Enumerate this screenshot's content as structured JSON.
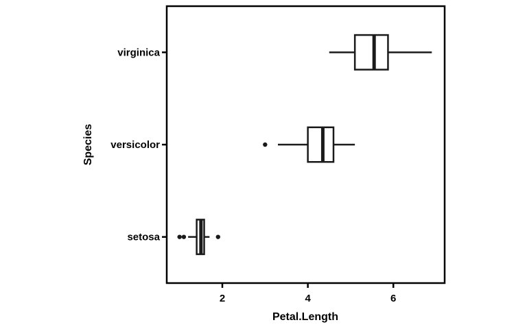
{
  "chart_data": {
    "type": "boxplot",
    "orientation": "horizontal",
    "xlabel": "Petal.Length",
    "ylabel": "Species",
    "xlim": [
      0.7,
      7.2
    ],
    "xticks": [
      2,
      4,
      6
    ],
    "grid": false,
    "legend": "none",
    "categories": [
      "setosa",
      "versicolor",
      "virginica"
    ],
    "boxes": [
      {
        "category": "setosa",
        "whisker_low": 1.2,
        "q1": 1.4,
        "median": 1.5,
        "q3": 1.575,
        "whisker_high": 1.7,
        "outliers": [
          1.0,
          1.1,
          1.9
        ]
      },
      {
        "category": "versicolor",
        "whisker_low": 3.3,
        "q1": 4.0,
        "median": 4.35,
        "q3": 4.6,
        "whisker_high": 5.1,
        "outliers": [
          3.0
        ]
      },
      {
        "category": "virginica",
        "whisker_low": 4.5,
        "q1": 5.1,
        "median": 5.55,
        "q3": 5.875,
        "whisker_high": 6.9,
        "outliers": []
      }
    ]
  },
  "colors": {
    "stroke": "#1a1a1a",
    "box_fill": "#ffffff",
    "background": "#ffffff"
  }
}
